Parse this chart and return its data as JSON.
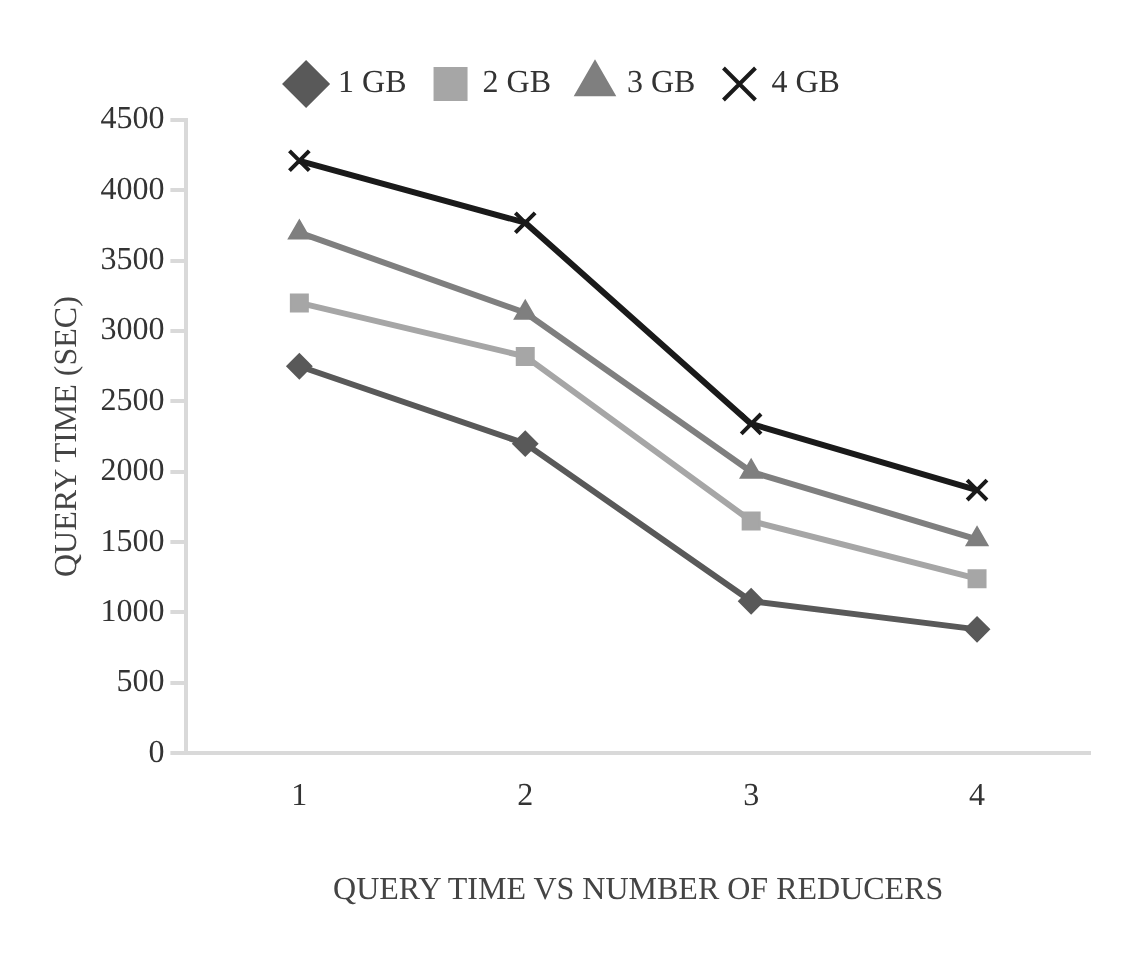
{
  "chart_data": {
    "type": "line",
    "xlabel": "QUERY TIME VS NUMBER OF REDUCERS",
    "ylabel": "QUERY TIME (SEC)",
    "categories": [
      "1",
      "2",
      "3",
      "4"
    ],
    "series": [
      {
        "name": "1 GB",
        "color": "#595959",
        "marker": "diamond",
        "values": [
          2750,
          2200,
          1080,
          880
        ]
      },
      {
        "name": "2 GB",
        "color": "#a6a6a6",
        "marker": "square",
        "values": [
          3200,
          2820,
          1650,
          1240
        ]
      },
      {
        "name": "3 GB",
        "color": "#7f7f7f",
        "marker": "triangle",
        "values": [
          3700,
          3130,
          2000,
          1520
        ]
      },
      {
        "name": "4 GB",
        "color": "#1a1a1a",
        "marker": "cross",
        "values": [
          4210,
          3770,
          2340,
          1870
        ]
      }
    ],
    "ylim": [
      0,
      4500
    ],
    "yticks": [
      0,
      500,
      1000,
      1500,
      2000,
      2500,
      3000,
      3500,
      4000,
      4500
    ],
    "grid": false,
    "legend": "top",
    "line_style": "solid"
  }
}
